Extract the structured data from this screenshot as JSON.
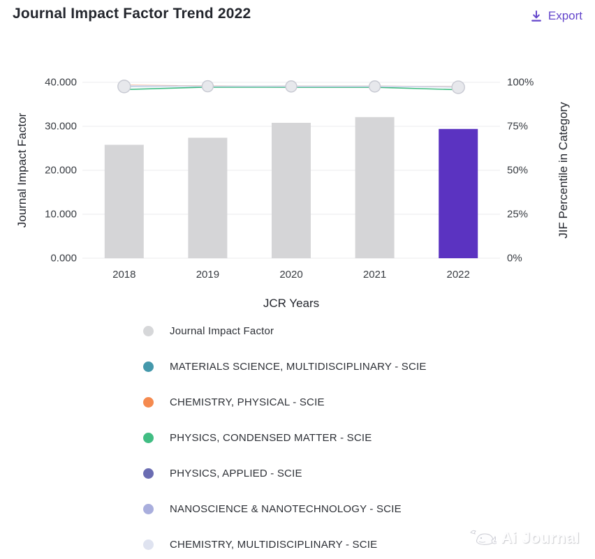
{
  "header": {
    "title": "Journal Impact Factor Trend 2022",
    "export_label": "Export",
    "export_icon": "download-icon",
    "accent_color": "#6345cb"
  },
  "chart_data": {
    "type": "bar+line combo",
    "categories": [
      "2018",
      "2019",
      "2020",
      "2021",
      "2022"
    ],
    "bar_series": {
      "name": "Journal Impact Factor",
      "values": [
        25.8,
        27.4,
        30.8,
        32.1,
        29.4
      ],
      "color": "#d5d5d7",
      "highlight_index": 4,
      "highlight_color": "#5b33c1"
    },
    "line_series": [
      {
        "name": "MATERIALS SCIENCE, MULTIDISCIPLINARY - SCIE",
        "color": "#4498ab",
        "values": [
          97.8,
          97.9,
          97.8,
          97.8,
          97.5
        ]
      },
      {
        "name": "CHEMISTRY, PHYSICAL - SCIE",
        "color": "#f58a4f",
        "values": [
          98.3,
          98.0,
          97.8,
          97.8,
          97.6
        ]
      },
      {
        "name": "PHYSICS, CONDENSED MATTER - SCIE",
        "color": "#41bd83",
        "values": [
          95.9,
          97.3,
          97.2,
          97.2,
          95.8
        ]
      },
      {
        "name": "PHYSICS, APPLIED - SCIE",
        "color": "#6a6cb2",
        "values": [
          98.0,
          97.9,
          97.7,
          97.7,
          97.5
        ]
      },
      {
        "name": "NANOSCIENCE & NANOTECHNOLOGY - SCIE",
        "color": "#a9aedd",
        "values": [
          97.9,
          97.8,
          97.7,
          97.7,
          97.4
        ]
      },
      {
        "name": "CHEMISTRY, MULTIDISCIPLINARY - SCIE",
        "color": "#dfe3f0",
        "values": [
          98.1,
          97.9,
          97.8,
          97.8,
          97.5
        ]
      }
    ],
    "marker": {
      "name": "year-marker",
      "fill": "#e7e8ec",
      "stroke": "#c7c9d2"
    },
    "left_axis": {
      "label": "Journal Impact Factor",
      "min": 0,
      "max": 40,
      "ticks": [
        "40.000",
        "30.000",
        "20.000",
        "10.000",
        "0.000"
      ]
    },
    "right_axis": {
      "label": "JIF Percentile in Category",
      "min": 0,
      "max": 100,
      "ticks": [
        "100%",
        "75%",
        "50%",
        "25%",
        "0%"
      ]
    },
    "xlabel": "JCR Years",
    "grid": true,
    "gridline_color": "#ebebee",
    "legend_position": "bottom-left"
  },
  "legend": {
    "items": [
      {
        "label": "Journal Impact Factor",
        "color": "#d6d7d9"
      },
      {
        "label": "MATERIALS SCIENCE, MULTIDISCIPLINARY - SCIE",
        "color": "#4498ab"
      },
      {
        "label": "CHEMISTRY, PHYSICAL - SCIE",
        "color": "#f58a4f"
      },
      {
        "label": "PHYSICS, CONDENSED MATTER - SCIE",
        "color": "#41bd83"
      },
      {
        "label": "PHYSICS, APPLIED - SCIE",
        "color": "#6a6cb2"
      },
      {
        "label": "NANOSCIENCE & NANOTECHNOLOGY - SCIE",
        "color": "#a9aedd"
      },
      {
        "label": "CHEMISTRY, MULTIDISCIPLINARY - SCIE",
        "color": "#dfe3f0"
      }
    ]
  },
  "watermark": {
    "text": "Ai Journal",
    "icon": "whale-icon"
  }
}
